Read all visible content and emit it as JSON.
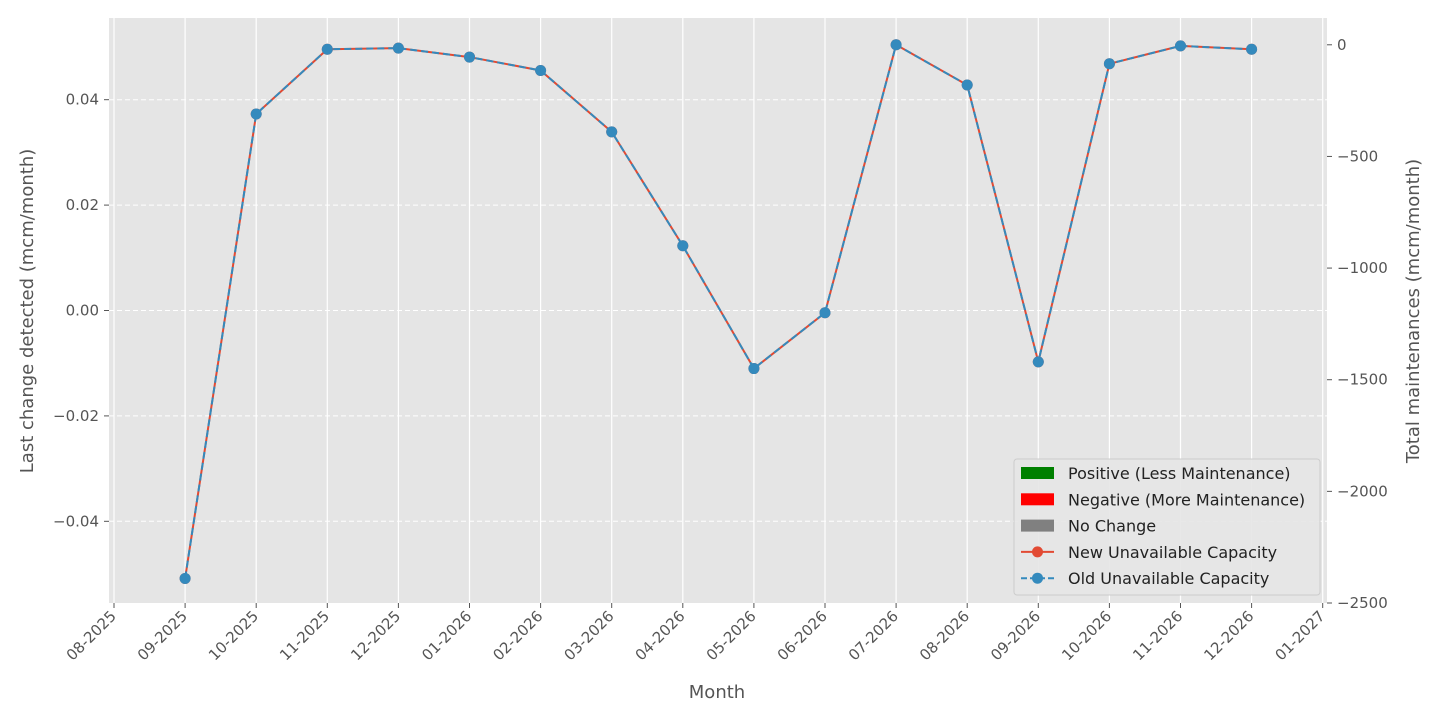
{
  "chart_data": {
    "type": "line",
    "title": "",
    "xlabel": "Month",
    "ylabel_left": "Last change detected (mcm/month)",
    "ylabel_right": "Total maintenances (mcm/month)",
    "x_ticks": [
      "08-2025",
      "09-2025",
      "10-2025",
      "11-2025",
      "12-2025",
      "01-2026",
      "02-2026",
      "03-2026",
      "04-2026",
      "05-2026",
      "06-2026",
      "07-2026",
      "08-2026",
      "09-2026",
      "10-2026",
      "11-2026",
      "12-2026",
      "01-2027"
    ],
    "x": [
      "09-2025",
      "10-2025",
      "11-2025",
      "12-2025",
      "01-2026",
      "02-2026",
      "03-2026",
      "04-2026",
      "05-2026",
      "06-2026",
      "07-2026",
      "08-2026",
      "09-2026",
      "10-2026",
      "11-2026",
      "12-2026"
    ],
    "y_left_ticks": [
      "0.04",
      "0.02",
      "0.00",
      "−0.02",
      "−0.04"
    ],
    "y_left_tick_values": [
      0.04,
      0.02,
      0.0,
      -0.02,
      -0.04
    ],
    "ylim_left": [
      -0.0555,
      0.0555
    ],
    "y_right_ticks": [
      "0",
      "−500",
      "−1000",
      "−1500",
      "−2000",
      "−2500"
    ],
    "y_right_tick_values": [
      0,
      -500,
      -1000,
      -1500,
      -2000,
      -2500
    ],
    "ylim_right": [
      -2500,
      120
    ],
    "series": [
      {
        "name": "New Unavailable Capacity",
        "color": "#E24A33",
        "style": "solid",
        "axis": "right",
        "values": [
          -2390,
          -310,
          -20,
          -15,
          -55,
          -115,
          -390,
          -900,
          -1450,
          -1200,
          0,
          -180,
          -1420,
          -85,
          -5,
          -20
        ]
      },
      {
        "name": "Old Unavailable Capacity",
        "color": "#348ABD",
        "style": "dashed",
        "axis": "right",
        "values": [
          -2390,
          -310,
          -20,
          -15,
          -55,
          -115,
          -390,
          -900,
          -1450,
          -1200,
          0,
          -180,
          -1420,
          -85,
          -5,
          -20
        ]
      }
    ],
    "legend": {
      "position": "bottom-right",
      "entries": [
        {
          "label": "Positive (Less Maintenance)",
          "kind": "patch",
          "color": "#008000"
        },
        {
          "label": "Negative (More Maintenance)",
          "kind": "patch",
          "color": "#FF0000"
        },
        {
          "label": "No Change",
          "kind": "patch",
          "color": "#808080"
        },
        {
          "label": "New Unavailable Capacity",
          "kind": "line",
          "color": "#E24A33",
          "style": "solid"
        },
        {
          "label": "Old Unavailable Capacity",
          "kind": "line",
          "color": "#348ABD",
          "style": "dashed"
        }
      ]
    },
    "grid": true,
    "background": "#E5E5E5"
  }
}
